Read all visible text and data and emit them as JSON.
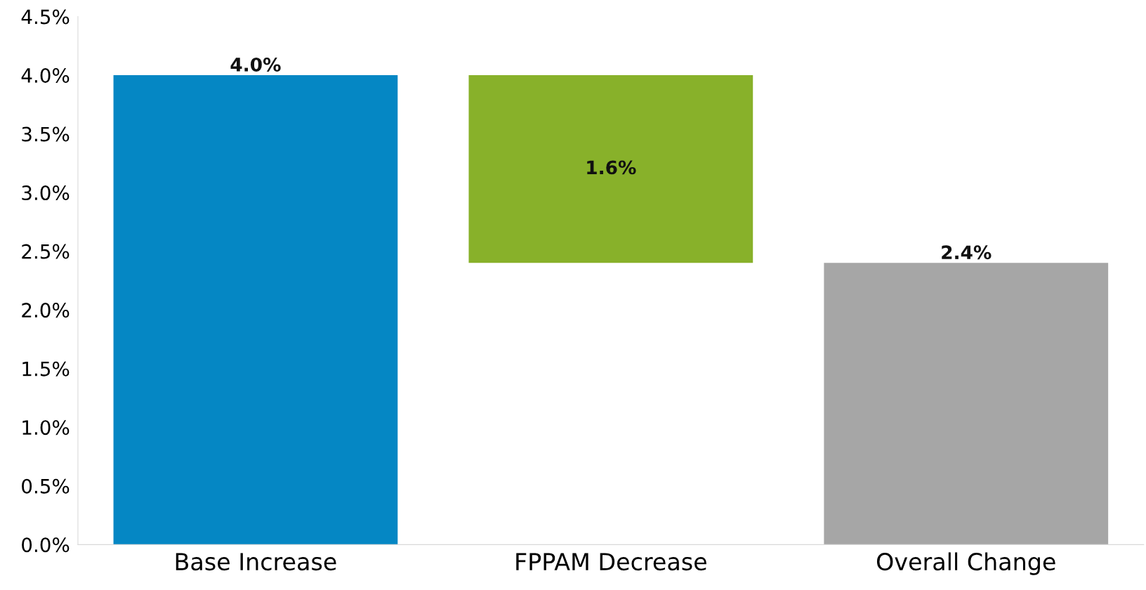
{
  "chart_data": {
    "type": "bar",
    "categories": [
      "Base Increase",
      "FPPAM Decrease",
      "Overall Change"
    ],
    "values": [
      4.0,
      1.6,
      2.4
    ],
    "base": [
      0,
      2.4,
      0
    ],
    "colors": [
      "#0587c4",
      "#88b12a",
      "#a6a6a6"
    ],
    "value_labels": [
      "4.0%",
      "1.6%",
      "2.4%"
    ],
    "ylim": [
      0,
      4.5
    ],
    "yticks": [
      {
        "value": 0,
        "label": "0.0%"
      },
      {
        "value": 0.5,
        "label": "0.5%"
      },
      {
        "value": 1.0,
        "label": "1.0%"
      },
      {
        "value": 1.5,
        "label": "1.5%"
      },
      {
        "value": 2.0,
        "label": "2.0%"
      },
      {
        "value": 2.5,
        "label": "2.5%"
      },
      {
        "value": 3.0,
        "label": "3.0%"
      },
      {
        "value": 3.5,
        "label": "3.5%"
      },
      {
        "value": 4.0,
        "label": "4.0%"
      },
      {
        "value": 4.5,
        "label": "4.5%"
      }
    ],
    "grid": false
  }
}
